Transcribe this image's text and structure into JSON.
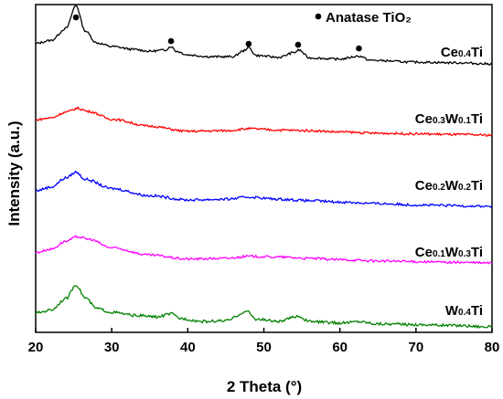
{
  "chart_data": {
    "type": "line",
    "xlabel": "2 Theta (°)",
    "ylabel": "Intensity (a.u.)",
    "xlim": [
      20,
      80
    ],
    "x_ticks": [
      "20",
      "30",
      "40",
      "50",
      "60",
      "70",
      "80"
    ],
    "y_ticks_shown": false,
    "legend": "top-right",
    "legend_label": "Anatase TiO₂",
    "anatase_peaks_2theta": [
      25.3,
      37.8,
      48.0,
      54.5,
      62.5
    ],
    "series": [
      {
        "name": "Ce0.4Ti",
        "label_parts": [
          {
            "t": "Ce",
            "sub": false
          },
          {
            "t": "0.4",
            "sub": true
          },
          {
            "t": "Ti",
            "sub": false
          }
        ],
        "color": "#000000",
        "points": [
          [
            20,
            0.37
          ],
          [
            22,
            0.42
          ],
          [
            24,
            0.62
          ],
          [
            25.3,
            1.0
          ],
          [
            26.5,
            0.58
          ],
          [
            28,
            0.38
          ],
          [
            30,
            0.32
          ],
          [
            33,
            0.27
          ],
          [
            35,
            0.24
          ],
          [
            37,
            0.26
          ],
          [
            37.8,
            0.32
          ],
          [
            38.5,
            0.24
          ],
          [
            40,
            0.18
          ],
          [
            43,
            0.15
          ],
          [
            46,
            0.15
          ],
          [
            47.2,
            0.24
          ],
          [
            48,
            0.3
          ],
          [
            49,
            0.17
          ],
          [
            52,
            0.14
          ],
          [
            54,
            0.22
          ],
          [
            54.6,
            0.26
          ],
          [
            56,
            0.13
          ],
          [
            60,
            0.11
          ],
          [
            62.5,
            0.16
          ],
          [
            64,
            0.09
          ],
          [
            70,
            0.06
          ],
          [
            75,
            0.05
          ],
          [
            80,
            0.03
          ]
        ]
      },
      {
        "name": "Ce0.3W0.1Ti",
        "label_parts": [
          {
            "t": "Ce",
            "sub": false
          },
          {
            "t": "0.3",
            "sub": true
          },
          {
            "t": "W",
            "sub": false
          },
          {
            "t": "0.1",
            "sub": true
          },
          {
            "t": "Ti",
            "sub": false
          }
        ],
        "color": "#ff0000",
        "points": [
          [
            20,
            0.24
          ],
          [
            22,
            0.27
          ],
          [
            24,
            0.36
          ],
          [
            25.5,
            0.42
          ],
          [
            27,
            0.37
          ],
          [
            30,
            0.25
          ],
          [
            35,
            0.14
          ],
          [
            40,
            0.06
          ],
          [
            45,
            0.07
          ],
          [
            48,
            0.1
          ],
          [
            52,
            0.08
          ],
          [
            56,
            0.07
          ],
          [
            60,
            0.05
          ],
          [
            65,
            0.03
          ],
          [
            70,
            0.02
          ],
          [
            75,
            0.01
          ],
          [
            80,
            0.0
          ]
        ]
      },
      {
        "name": "Ce0.2W0.2Ti",
        "label_parts": [
          {
            "t": "Ce",
            "sub": false
          },
          {
            "t": "0.2",
            "sub": true
          },
          {
            "t": "W",
            "sub": false
          },
          {
            "t": "0.2",
            "sub": true
          },
          {
            "t": "Ti",
            "sub": false
          }
        ],
        "color": "#0000ff",
        "points": [
          [
            20,
            0.22
          ],
          [
            22,
            0.27
          ],
          [
            24,
            0.4
          ],
          [
            25.3,
            0.48
          ],
          [
            26.5,
            0.38
          ],
          [
            30,
            0.25
          ],
          [
            35,
            0.15
          ],
          [
            40,
            0.09
          ],
          [
            45,
            0.1
          ],
          [
            48,
            0.13
          ],
          [
            52,
            0.1
          ],
          [
            56,
            0.08
          ],
          [
            60,
            0.06
          ],
          [
            65,
            0.04
          ],
          [
            70,
            0.02
          ],
          [
            75,
            0.01
          ],
          [
            80,
            0.0
          ]
        ]
      },
      {
        "name": "Ce0.1W0.3Ti",
        "label_parts": [
          {
            "t": "Ce",
            "sub": false
          },
          {
            "t": "0.1",
            "sub": true
          },
          {
            "t": "W",
            "sub": false
          },
          {
            "t": "0.3",
            "sub": true
          },
          {
            "t": "Ti",
            "sub": false
          }
        ],
        "color": "#ff00ff",
        "points": [
          [
            20,
            0.16
          ],
          [
            22,
            0.21
          ],
          [
            24,
            0.33
          ],
          [
            25.5,
            0.4
          ],
          [
            27,
            0.36
          ],
          [
            30,
            0.23
          ],
          [
            35,
            0.12
          ],
          [
            40,
            0.06
          ],
          [
            45,
            0.07
          ],
          [
            48,
            0.1
          ],
          [
            52,
            0.09
          ],
          [
            56,
            0.07
          ],
          [
            60,
            0.05
          ],
          [
            65,
            0.03
          ],
          [
            70,
            0.02
          ],
          [
            75,
            0.01
          ],
          [
            80,
            0.0
          ]
        ]
      },
      {
        "name": "W0.4Ti",
        "label_parts": [
          {
            "t": "W",
            "sub": false
          },
          {
            "t": "0.4",
            "sub": true
          },
          {
            "t": "Ti",
            "sub": false
          }
        ],
        "color": "#008000",
        "points": [
          [
            20,
            0.18
          ],
          [
            22,
            0.22
          ],
          [
            24,
            0.37
          ],
          [
            25.3,
            0.55
          ],
          [
            26.5,
            0.38
          ],
          [
            28,
            0.24
          ],
          [
            30,
            0.19
          ],
          [
            33,
            0.15
          ],
          [
            36,
            0.13
          ],
          [
            37.8,
            0.17
          ],
          [
            39,
            0.11
          ],
          [
            42,
            0.07
          ],
          [
            45,
            0.08
          ],
          [
            47.8,
            0.2
          ],
          [
            49,
            0.1
          ],
          [
            52,
            0.07
          ],
          [
            54.5,
            0.14
          ],
          [
            56,
            0.07
          ],
          [
            60,
            0.05
          ],
          [
            62.5,
            0.07
          ],
          [
            65,
            0.04
          ],
          [
            70,
            0.03
          ],
          [
            75,
            0.02
          ],
          [
            80,
            0.0
          ]
        ]
      }
    ]
  },
  "icons": {
    "anatase_marker": "filled-circle"
  }
}
